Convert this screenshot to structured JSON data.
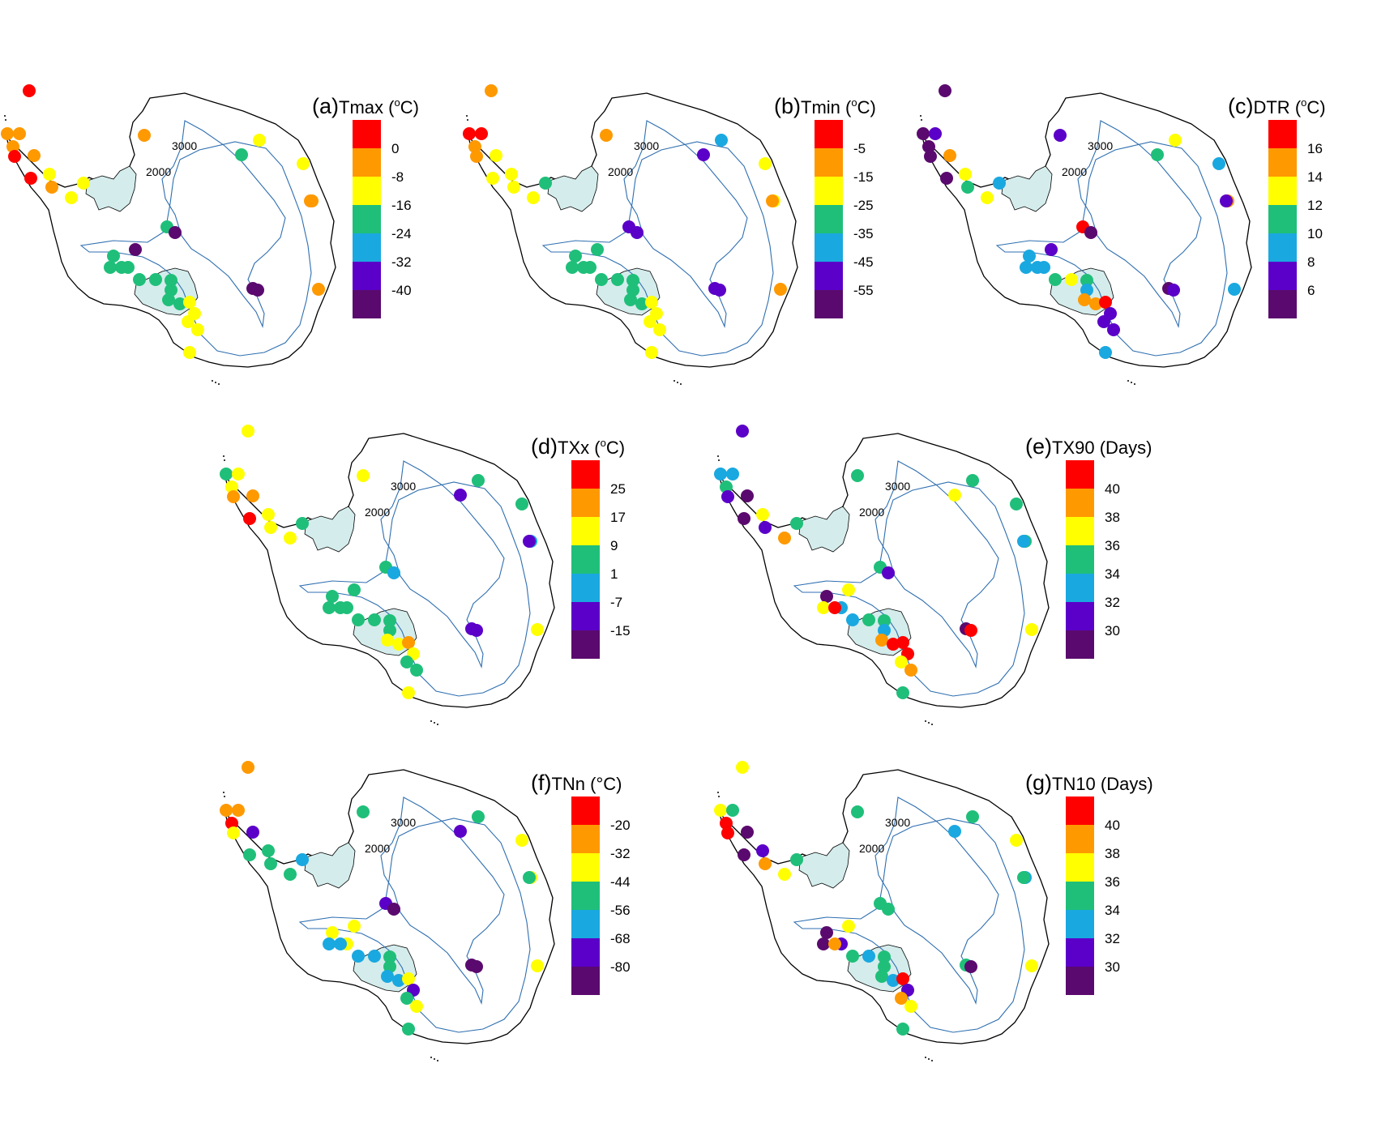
{
  "colors": {
    "scale": [
      "#ff0000",
      "#ff9900",
      "#ffff00",
      "#1fbf7a",
      "#1aa8e0",
      "#5b00c8",
      "#5a0a6e"
    ],
    "shelf_fill": "#d4ecec",
    "contour": "#2f6fb0",
    "coast": "#000000"
  },
  "contour_labels": [
    "3000",
    "2000"
  ],
  "panels": [
    {
      "letter": "(a)",
      "name": "Tmax",
      "unit_open": "(",
      "unit_sup": "o",
      "unit_close": "C)",
      "ticks": [
        "0",
        "-8",
        "-16",
        "-24",
        "-32",
        "-40"
      ],
      "stations": [
        0,
        1,
        1,
        1,
        0,
        0,
        1,
        2,
        1,
        2,
        2,
        2,
        3,
        3,
        6,
        6,
        6,
        6,
        3,
        3,
        3,
        3,
        3,
        3,
        3,
        3,
        3,
        3,
        2,
        2,
        2,
        2,
        2,
        1,
        2,
        1,
        1,
        1
      ]
    },
    {
      "letter": "(b)",
      "name": "Tmin",
      "unit_open": "(",
      "unit_sup": "o",
      "unit_close": "C)",
      "ticks": [
        "-5",
        "-15",
        "-25",
        "-35",
        "-45",
        "-55"
      ],
      "stations": [
        1,
        0,
        0,
        1,
        1,
        2,
        2,
        2,
        2,
        2,
        3,
        4,
        5,
        5,
        5,
        5,
        5,
        3,
        3,
        3,
        3,
        3,
        3,
        3,
        3,
        3,
        3,
        3,
        2,
        2,
        2,
        2,
        2,
        1,
        2,
        2,
        1,
        1
      ]
    },
    {
      "letter": "(c)",
      "name": "DTR",
      "unit_open": "(",
      "unit_sup": "o",
      "unit_close": "C)",
      "ticks": [
        "16",
        "14",
        "12",
        "10",
        "8",
        "6"
      ],
      "stations": [
        6,
        6,
        5,
        6,
        6,
        6,
        1,
        2,
        3,
        2,
        4,
        2,
        3,
        0,
        6,
        6,
        5,
        5,
        4,
        4,
        4,
        4,
        2,
        3,
        3,
        4,
        1,
        1,
        0,
        5,
        5,
        5,
        4,
        5,
        4,
        1,
        5,
        4
      ]
    },
    {
      "letter": "(d)",
      "name": "TXx",
      "unit_open": "(",
      "unit_sup": "o",
      "unit_close": "C)",
      "ticks": [
        "25",
        "17",
        "9",
        "1",
        "-7",
        "-15"
      ],
      "stations": [
        2,
        3,
        2,
        2,
        1,
        0,
        1,
        2,
        2,
        2,
        3,
        3,
        5,
        3,
        4,
        5,
        5,
        3,
        3,
        3,
        3,
        3,
        3,
        3,
        3,
        3,
        2,
        2,
        1,
        2,
        3,
        3,
        2,
        2,
        3,
        4,
        5,
        2
      ]
    },
    {
      "letter": "(e)",
      "name": "TX90",
      "unit_open": "(",
      "unit_sup": "",
      "unit_close": "Days)",
      "ticks": [
        "40",
        "38",
        "36",
        "34",
        "32",
        "30"
      ],
      "stations": [
        5,
        4,
        4,
        3,
        5,
        6,
        6,
        2,
        5,
        1,
        3,
        3,
        2,
        3,
        5,
        6,
        0,
        2,
        6,
        4,
        2,
        0,
        3,
        4,
        3,
        4,
        1,
        0,
        0,
        0,
        2,
        1,
        3,
        3,
        3,
        3,
        4,
        2
      ]
    },
    {
      "letter": "(f)",
      "name": "TNn",
      "unit_open": "(",
      "unit_sup": "",
      "unit_close": "(°C)",
      "ticks": [
        "-20",
        "-32",
        "-44",
        "-56",
        "-68",
        "-80"
      ],
      "stations": [
        1,
        1,
        1,
        0,
        2,
        3,
        5,
        3,
        3,
        3,
        4,
        3,
        5,
        5,
        6,
        6,
        6,
        2,
        2,
        2,
        4,
        4,
        4,
        4,
        3,
        3,
        4,
        4,
        2,
        5,
        3,
        2,
        3,
        3,
        2,
        2,
        3,
        2
      ]
    },
    {
      "letter": "(g)",
      "name": "TN10",
      "unit_open": "(",
      "unit_sup": "",
      "unit_close": "Days)",
      "ticks": [
        "40",
        "38",
        "36",
        "34",
        "32",
        "30"
      ],
      "stations": [
        2,
        2,
        3,
        0,
        0,
        6,
        6,
        5,
        1,
        2,
        3,
        3,
        4,
        3,
        3,
        3,
        6,
        2,
        6,
        5,
        6,
        1,
        4,
        3,
        3,
        3,
        3,
        4,
        0,
        5,
        1,
        2,
        3,
        3,
        2,
        4,
        3,
        2
      ]
    }
  ]
}
